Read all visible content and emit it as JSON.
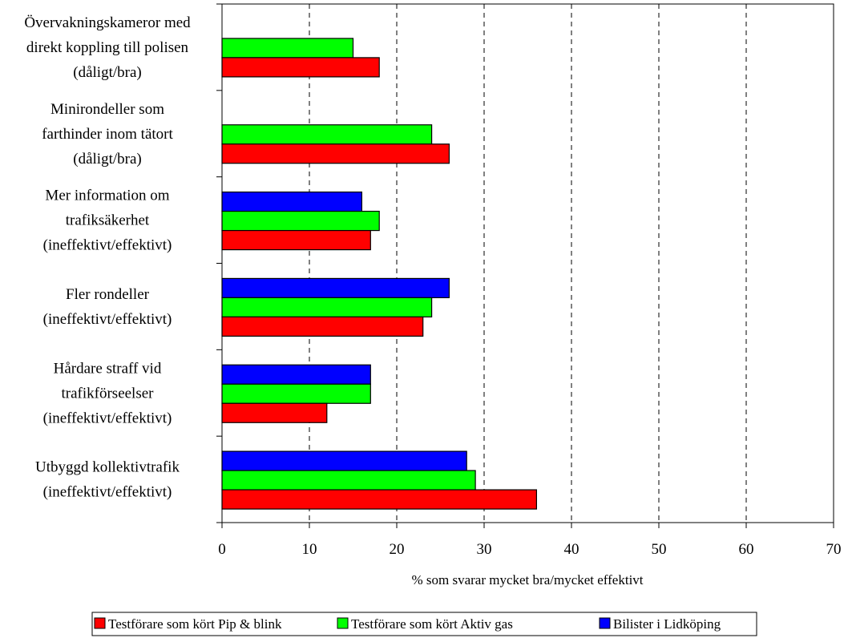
{
  "chart_data": {
    "type": "bar",
    "orientation": "horizontal",
    "categories": [
      [
        "Övervakningskameror med",
        "direkt koppling till polisen",
        "(dåligt/bra)"
      ],
      [
        "Minirondeller som",
        "farthinder inom tätort",
        "(dåligt/bra)"
      ],
      [
        "Mer information om",
        "trafiksäkerhet",
        "(ineffektivt/effektivt)"
      ],
      [
        "Fler rondeller",
        "(ineffektivt/effektivt)"
      ],
      [
        "Hårdare straff vid",
        "trafikförseelser",
        "(ineffektivt/effektivt)"
      ],
      [
        "Utbyggd kollektivtrafik",
        "(ineffektivt/effektivt)"
      ]
    ],
    "series": [
      {
        "name": "Testförare som kört Pip & blink",
        "color": "#ff0000",
        "values": [
          18,
          26,
          17,
          23,
          12,
          36
        ]
      },
      {
        "name": "Testförare som kört Aktiv gas",
        "color": "#00ff00",
        "values": [
          15,
          24,
          18,
          24,
          17,
          29
        ]
      },
      {
        "name": "Bilister i Lidköping",
        "color": "#0000ff",
        "values": [
          null,
          null,
          16,
          26,
          17,
          28
        ]
      }
    ],
    "xlabel": "% som svarar mycket bra/mycket effektivt",
    "xlim": [
      0,
      70
    ],
    "xticks": [
      "0",
      "10",
      "20",
      "30",
      "40",
      "50",
      "60",
      "70"
    ],
    "grid": "vertical dashed",
    "legend": "bottom"
  }
}
